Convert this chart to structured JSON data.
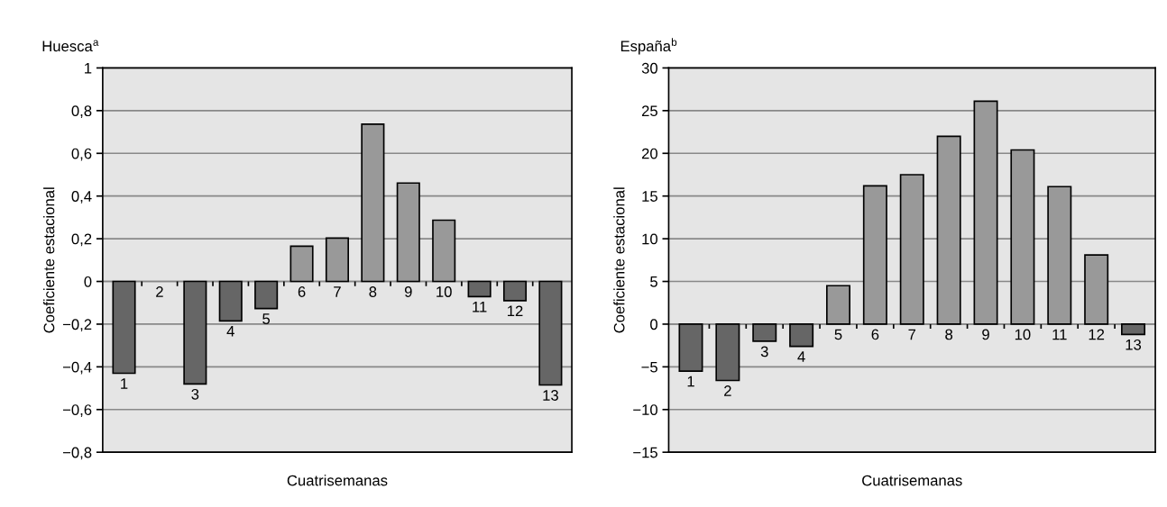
{
  "chart_data": [
    {
      "type": "bar",
      "title": "Huesca$^{a}$",
      "xlabel": "Cuatrisemanas",
      "ylabel": "Coeficiente estacional",
      "categories": [
        "1",
        "2",
        "3",
        "4",
        "5",
        "6",
        "7",
        "8",
        "9",
        "10",
        "11",
        "12",
        "13"
      ],
      "values": [
        -0.43,
        null,
        -0.48,
        -0.185,
        -0.127,
        0.165,
        0.203,
        0.737,
        0.461,
        0.287,
        -0.071,
        -0.09,
        -0.485
      ],
      "colors": [
        "#666666",
        "#666666",
        "#666666",
        "#666666",
        "#666666",
        "#999999",
        "#999999",
        "#999999",
        "#999999",
        "#999999",
        "#666666",
        "#666666",
        "#666666"
      ],
      "ylim": [
        -0.8,
        1
      ],
      "yticks": [
        {
          "value": -0.8,
          "label": "−0,8"
        },
        {
          "value": -0.6,
          "label": "−0,6"
        },
        {
          "value": -0.4,
          "label": "−0,4"
        },
        {
          "value": -0.2,
          "label": "−0,2"
        },
        {
          "value": 0,
          "label": "0"
        },
        {
          "value": 0.2,
          "label": "0,2"
        },
        {
          "value": 0.4,
          "label": "0,4"
        },
        {
          "value": 0.6,
          "label": "0,6"
        },
        {
          "value": 0.8,
          "label": "0,8"
        },
        {
          "value": 1,
          "label": "1"
        }
      ],
      "grid": "y",
      "legend": false
    },
    {
      "type": "bar",
      "title": "España$^{b}$",
      "xlabel": "Cuatrisemanas",
      "ylabel": "Coeficiente estacional",
      "categories": [
        "1",
        "2",
        "3",
        "4",
        "5",
        "6",
        "7",
        "8",
        "9",
        "10",
        "11",
        "12",
        "13"
      ],
      "values": [
        -5.5,
        -6.6,
        -2.0,
        -2.6,
        4.5,
        16.2,
        17.5,
        22,
        26.1,
        20.4,
        16.1,
        8.1,
        -1.2
      ],
      "colors": [
        "#666666",
        "#666666",
        "#666666",
        "#666666",
        "#999999",
        "#999999",
        "#999999",
        "#999999",
        "#999999",
        "#999999",
        "#999999",
        "#999999",
        "#666666"
      ],
      "ylim": [
        -15,
        30
      ],
      "yticks": [
        {
          "value": -15,
          "label": "−15"
        },
        {
          "value": -10,
          "label": "−10"
        },
        {
          "value": -5,
          "label": "−5"
        },
        0,
        5,
        10,
        15,
        20,
        25,
        30
      ],
      "grid": "y",
      "legend": false
    }
  ]
}
